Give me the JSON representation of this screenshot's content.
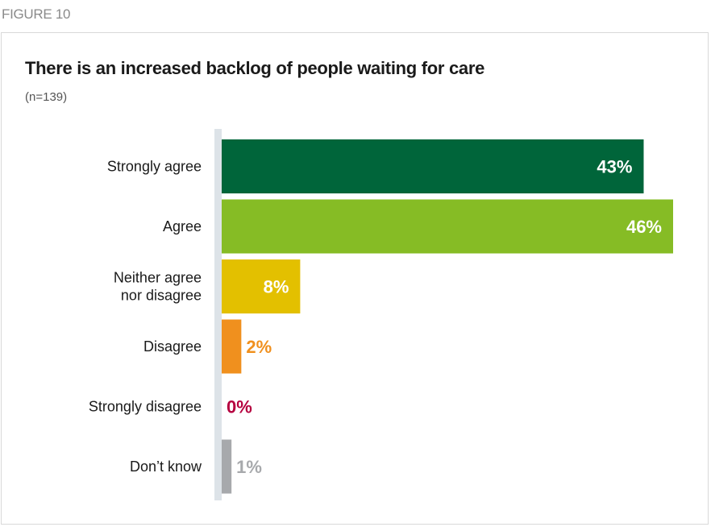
{
  "figure_label": "FIGURE 10",
  "chart_data": {
    "type": "bar",
    "orientation": "horizontal",
    "title": "There is an increased backlog of people waiting for care",
    "subtitle": "(n=139)",
    "categories": [
      "Strongly agree",
      "Agree",
      "Neither agree\nnor disagree",
      "Disagree",
      "Strongly disagree",
      "Don’t know"
    ],
    "values": [
      43,
      46,
      8,
      2,
      0,
      1
    ],
    "value_labels": [
      "43%",
      "46%",
      "8%",
      "2%",
      "0%",
      "1%"
    ],
    "colors": [
      "#00653a",
      "#86bc25",
      "#e3c000",
      "#f0901e",
      "#b5003f",
      "#a7a9ac"
    ],
    "label_colors": [
      "#ffffff",
      "#ffffff",
      "#ffffff",
      "#f0901e",
      "#b5003f",
      "#a7a9ac"
    ],
    "xlim": [
      0,
      46
    ],
    "axis_color": "#dde3e8",
    "grid": false,
    "xlabel": "",
    "ylabel": ""
  }
}
